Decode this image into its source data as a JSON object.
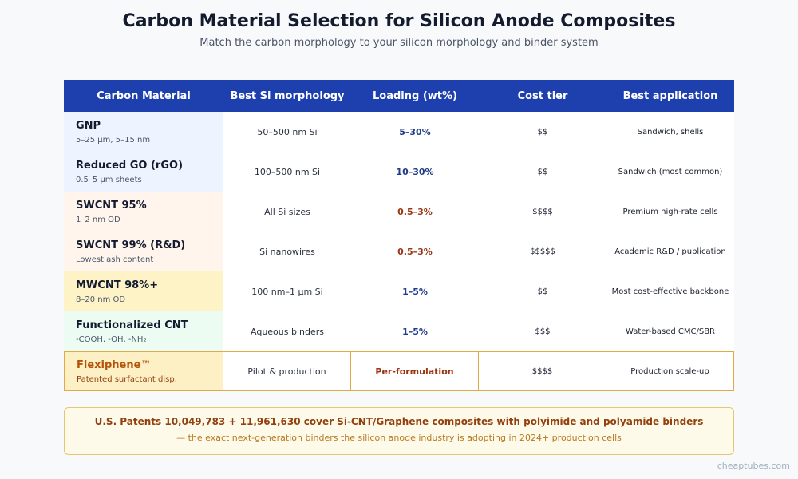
{
  "header": {
    "title": "Carbon Material Selection for Silicon Anode Composites",
    "subtitle": "Match the carbon morphology to your silicon morphology and binder system"
  },
  "table": {
    "columns": [
      "Carbon Material",
      "Best Si morphology",
      "Loading (wt%)",
      "Cost tier",
      "Best application"
    ],
    "rows": [
      {
        "name": "GNP",
        "sub": "5–25 µm, 5–15 nm",
        "morphology": "50–500 nm Si",
        "loading": "5–30%",
        "cost": "$$",
        "application": "Sandwich, shells",
        "bg": "#eef4ff",
        "loading_color": "#1e3a8a"
      },
      {
        "name": "Reduced GO (rGO)",
        "sub": "0.5–5 µm sheets",
        "morphology": "100–500 nm Si",
        "loading": "10–30%",
        "cost": "$$",
        "application": "Sandwich (most common)",
        "bg": "#eef4ff",
        "loading_color": "#1e3a8a"
      },
      {
        "name": "SWCNT 95%",
        "sub": "1–2 nm OD",
        "morphology": "All Si sizes",
        "loading": "0.5–3%",
        "cost": "$$$$",
        "application": "Premium high-rate cells",
        "bg": "#fff5ec",
        "loading_color": "#9a3412"
      },
      {
        "name": "SWCNT 99% (R&D)",
        "sub": "Lowest ash content",
        "morphology": "Si nanowires",
        "loading": "0.5–3%",
        "cost": "$$$$$",
        "application": "Academic R&D / publication",
        "bg": "#fff5ec",
        "loading_color": "#9a3412"
      },
      {
        "name": "MWCNT 98%+",
        "sub": "8–20 nm OD",
        "morphology": "100 nm–1 µm Si",
        "loading": "1–5%",
        "cost": "$$",
        "application": "Most cost-effective backbone",
        "bg": "#fef3c7",
        "loading_color": "#1e3a8a"
      },
      {
        "name": "Functionalized CNT",
        "sub": "-COOH, -OH, -NH₂",
        "morphology": "Aqueous binders",
        "loading": "1–5%",
        "cost": "$$$",
        "application": "Water-based CMC/SBR",
        "bg": "#edfcf3",
        "loading_color": "#1e3a8a"
      }
    ],
    "highlight_row": {
      "name": "Flexiphene™",
      "sub": "Patented surfactant disp.",
      "morphology": "Pilot & production",
      "loading": "Per-formulation",
      "cost": "$$$$",
      "application": "Production scale-up"
    }
  },
  "footer": {
    "main": "U.S. Patents 10,049,783 + 11,961,630 cover Si-CNT/Graphene composites with polyimide and polyamide binders",
    "sub": "— the exact next-generation binders the silicon anode industry is adopting in 2024+ production cells"
  },
  "watermark": "cheaptubes.com",
  "colors": {
    "header_bg": "#1e3fae",
    "accent_blue": "#1e3a8a",
    "accent_red": "#9a3412",
    "highlight_border": "#e0a94a",
    "highlight_name": "#b45309"
  }
}
